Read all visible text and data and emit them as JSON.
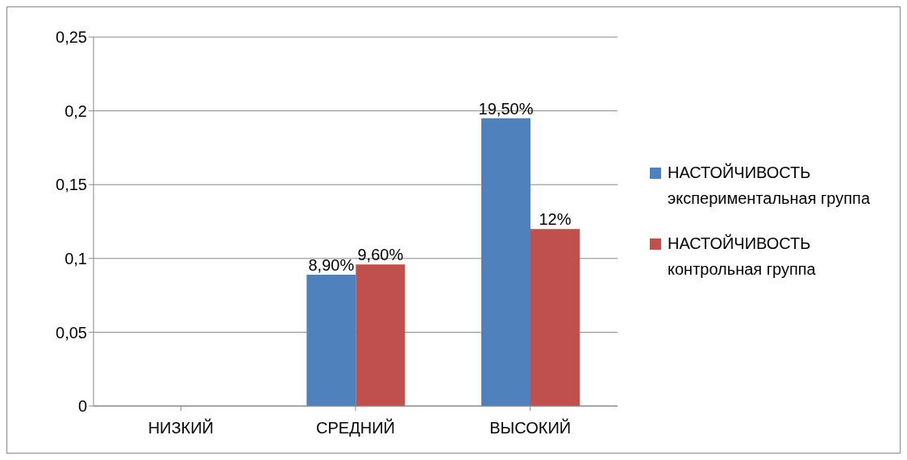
{
  "chart_data": {
    "type": "bar",
    "categories": [
      "НИЗКИЙ",
      "СРЕДНИЙ",
      "ВЫСОКИЙ"
    ],
    "series": [
      {
        "name": "НАСТОЙЧИВОСТЬ экспериментальная группа",
        "color": "#4f81bd",
        "values": [
          0,
          0.089,
          0.195
        ],
        "value_labels": [
          null,
          "8,90%",
          "19,50%"
        ]
      },
      {
        "name": "НАСТОЙЧИВОСТЬ контрольная группа",
        "color": "#c0504d",
        "values": [
          0,
          0.096,
          0.12
        ],
        "value_labels": [
          null,
          "9,60%",
          "12%"
        ]
      }
    ],
    "ylim": [
      0,
      0.25
    ],
    "yticks": [
      {
        "value": 0,
        "label": "0"
      },
      {
        "value": 0.05,
        "label": "0,05"
      },
      {
        "value": 0.1,
        "label": "0,1"
      },
      {
        "value": 0.15,
        "label": "0,15"
      },
      {
        "value": 0.2,
        "label": "0,2"
      },
      {
        "value": 0.25,
        "label": "0,25"
      }
    ],
    "grid": "y",
    "legend": "right"
  }
}
